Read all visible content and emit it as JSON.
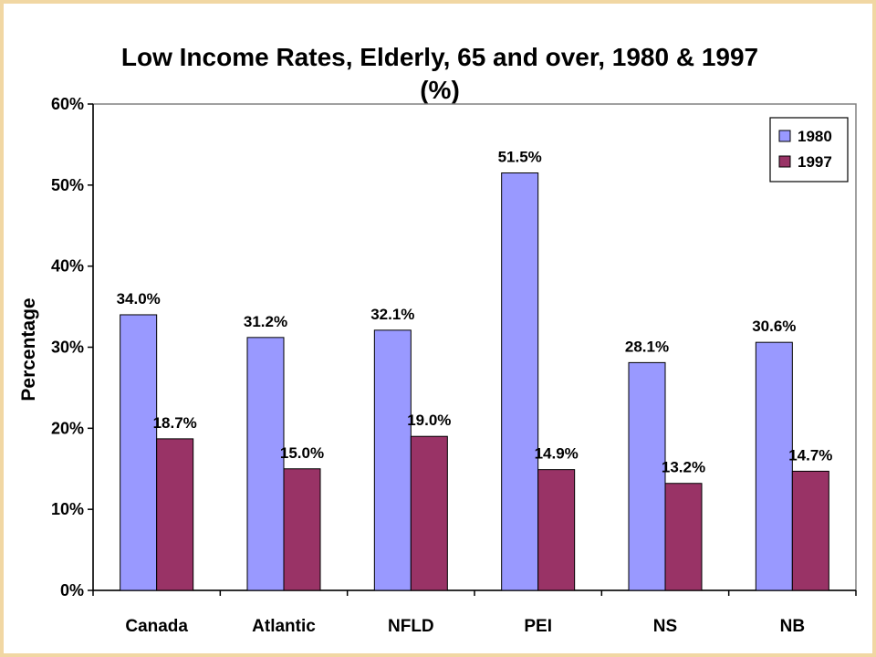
{
  "chart_data": {
    "type": "bar",
    "title": "Low Income Rates, Elderly, 65 and over, 1980 & 1997",
    "subtitle": "(%)",
    "ylabel": "Percentage",
    "xlabel": "",
    "ylim": [
      0,
      60
    ],
    "yticks": [
      "0%",
      "10%",
      "20%",
      "30%",
      "40%",
      "50%",
      "60%"
    ],
    "categories": [
      "Canada",
      "Atlantic",
      "NFLD",
      "PEI",
      "NS",
      "NB"
    ],
    "series": [
      {
        "name": "1980",
        "color": "#9999ff",
        "values": [
          34.0,
          31.2,
          32.1,
          51.5,
          28.1,
          30.6
        ],
        "labels": [
          "34.0%",
          "31.2%",
          "32.1%",
          "51.5%",
          "28.1%",
          "30.6%"
        ]
      },
      {
        "name": "1997",
        "color": "#993366",
        "values": [
          18.7,
          15.0,
          19.0,
          14.9,
          13.2,
          14.7
        ],
        "labels": [
          "18.7%",
          "15.0%",
          "19.0%",
          "14.9%",
          "13.2%",
          "14.7%"
        ]
      }
    ],
    "legend": "top-right",
    "grid": false
  }
}
